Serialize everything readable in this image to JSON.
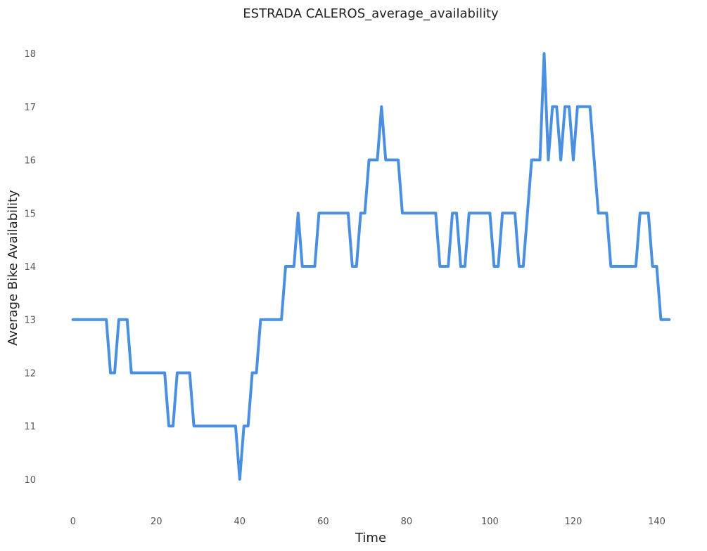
{
  "chart_data": {
    "type": "line",
    "title": "ESTRADA CALEROS_average_availability",
    "xlabel": "Time",
    "ylabel": "Average Bike Availability",
    "xlim": [
      -4,
      147
    ],
    "ylim": [
      9.55,
      18.45
    ],
    "x_ticks": [
      0,
      20,
      40,
      60,
      80,
      100,
      120,
      140
    ],
    "y_ticks": [
      10,
      11,
      12,
      13,
      14,
      15,
      16,
      17,
      18
    ],
    "grid": false,
    "line_color": "#4a8fe0",
    "series": [
      {
        "x": [
          0,
          1,
          2,
          3,
          4,
          5,
          6,
          7,
          8,
          9,
          10,
          11,
          12,
          13,
          14,
          15,
          16,
          17,
          18,
          19,
          20,
          21,
          22,
          23,
          24,
          25,
          26,
          27,
          28,
          29,
          30,
          31,
          32,
          33,
          34,
          35,
          36,
          37,
          38,
          39,
          40,
          41,
          42,
          43,
          44,
          45,
          46,
          47,
          48,
          49,
          50,
          51,
          52,
          53,
          54,
          55,
          56,
          57,
          58,
          59,
          60,
          61,
          62,
          63,
          64,
          65,
          66,
          67,
          68,
          69,
          70,
          71,
          72,
          73,
          74,
          75,
          76,
          77,
          78,
          79,
          80,
          81,
          82,
          83,
          84,
          85,
          86,
          87,
          88,
          89,
          90,
          91,
          92,
          93,
          94,
          95,
          96,
          97,
          98,
          99,
          100,
          101,
          102,
          103,
          104,
          105,
          106,
          107,
          108,
          109,
          110,
          111,
          112,
          113,
          114,
          115,
          116,
          117,
          118,
          119,
          120,
          121,
          122,
          123,
          124,
          125,
          126,
          127,
          128,
          129,
          130,
          131,
          132,
          133,
          134,
          135,
          136,
          137,
          138,
          139,
          140,
          141,
          142,
          143
        ],
        "values": [
          13,
          13,
          13,
          13,
          13,
          13,
          13,
          13,
          13,
          12,
          12,
          13,
          13,
          13,
          12,
          12,
          12,
          12,
          12,
          12,
          12,
          12,
          12,
          11,
          11,
          12,
          12,
          12,
          12,
          11,
          11,
          11,
          11,
          11,
          11,
          11,
          11,
          11,
          11,
          11,
          10,
          11,
          11,
          12,
          12,
          13,
          13,
          13,
          13,
          13,
          13,
          14,
          14,
          14,
          15,
          14,
          14,
          14,
          14,
          15,
          15,
          15,
          15,
          15,
          15,
          15,
          15,
          14,
          14,
          15,
          15,
          16,
          16,
          16,
          17,
          16,
          16,
          16,
          16,
          15,
          15,
          15,
          15,
          15,
          15,
          15,
          15,
          15,
          14,
          14,
          14,
          15,
          15,
          14,
          14,
          15,
          15,
          15,
          15,
          15,
          15,
          14,
          14,
          15,
          15,
          15,
          15,
          14,
          14,
          15,
          16,
          16,
          16,
          18,
          16,
          17,
          17,
          16,
          17,
          17,
          16,
          17,
          17,
          17,
          17,
          16,
          15,
          15,
          15,
          14,
          14,
          14,
          14,
          14,
          14,
          14,
          15,
          15,
          15,
          14,
          14,
          13,
          13,
          13
        ]
      }
    ]
  }
}
